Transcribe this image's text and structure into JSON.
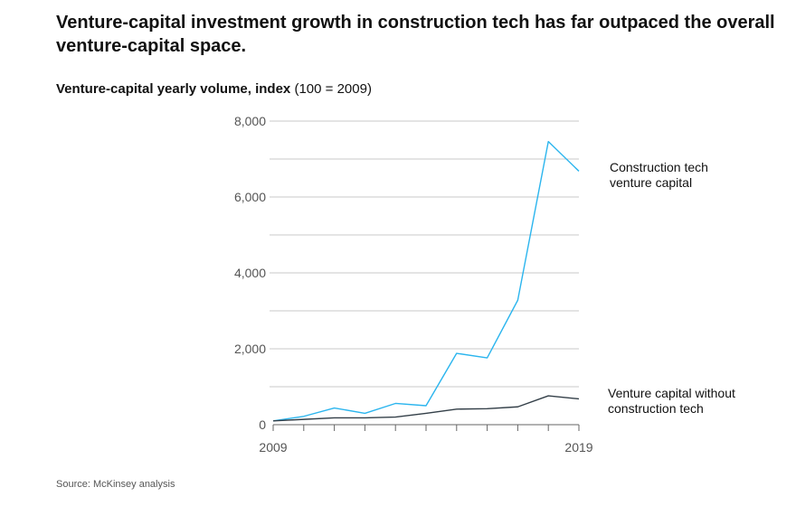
{
  "title": "Venture-capital investment growth in construction tech has far outpaced the overall venture-capital space.",
  "subtitle": {
    "bold": "Venture-capital yearly volume, index",
    "normal": "(100 = 2009)"
  },
  "source": "Source: McKinsey analysis",
  "colors": {
    "construction": "#2bb5ee",
    "overall": "#333f48",
    "grid": "#c8c8c8"
  },
  "chart_data": {
    "type": "line",
    "x": [
      2009,
      2010,
      2011,
      2012,
      2013,
      2014,
      2015,
      2016,
      2017,
      2018,
      2019
    ],
    "x_tick_labels": [
      "2009",
      "2019"
    ],
    "y_tick_labels": [
      "8,000",
      "6,000",
      "4,000",
      "2,000",
      "0"
    ],
    "y_ticks": [
      8000,
      6000,
      4000,
      2000,
      0
    ],
    "ylim": [
      0,
      8000
    ],
    "grid": true,
    "series": [
      {
        "name_lines": [
          "Construction tech",
          "venture capital"
        ],
        "values": [
          100,
          220,
          440,
          300,
          560,
          500,
          1880,
          1760,
          3280,
          7460,
          6680
        ]
      },
      {
        "name_lines": [
          "Venture capital without",
          "construction tech"
        ],
        "values": [
          100,
          140,
          180,
          180,
          200,
          300,
          410,
          420,
          470,
          760,
          680
        ]
      }
    ]
  }
}
